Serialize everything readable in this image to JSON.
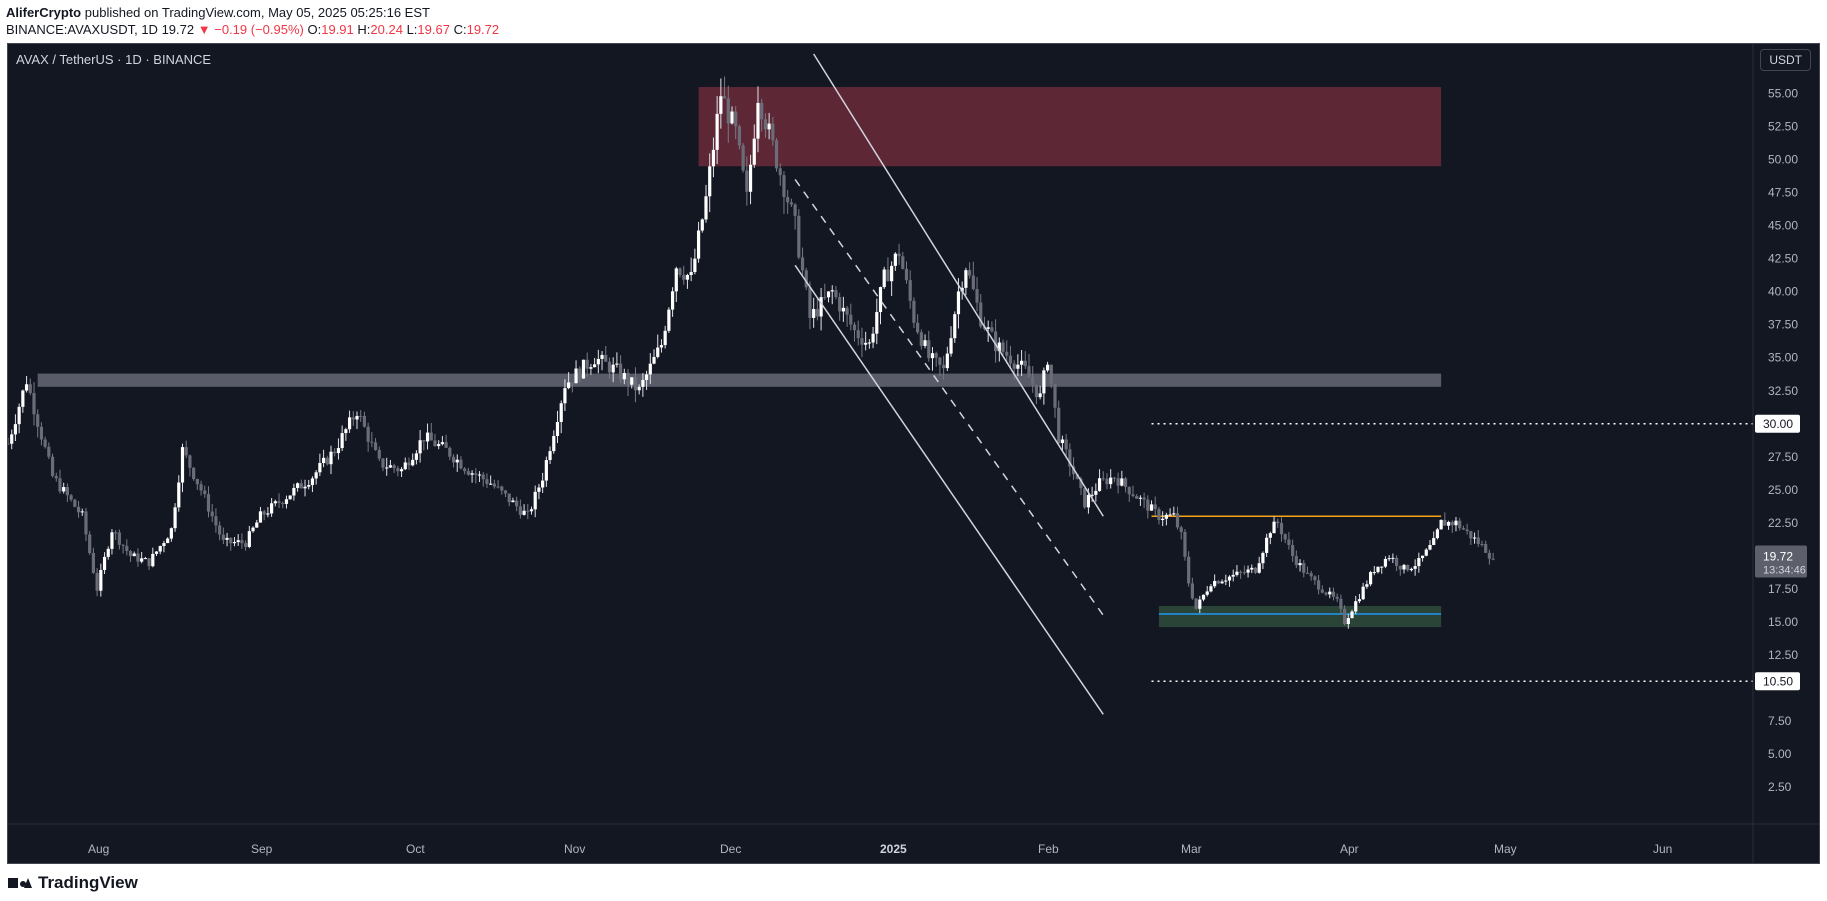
{
  "header": {
    "author": "AliferCrypto",
    "published": "published on TradingView.com, May 05, 2025 05:25:16 EST",
    "symbol": "BINANCE:AVAXUSDT, 1D",
    "last": "19.72",
    "change": "−0.19 (−0.95%)",
    "o_label": "O:",
    "o_value": "19.91",
    "h_label": "H:",
    "h_value": "20.24",
    "l_label": "L:",
    "l_value": "19.67",
    "c_label": "C:",
    "c_value": "19.72"
  },
  "chart": {
    "symbol_label": "AVAX / TetherUS · 1D · BINANCE",
    "currency": "USDT",
    "price_tag": "19.72",
    "countdown": "13:34:46",
    "level_tags": [
      "30.00",
      "10.50"
    ]
  },
  "footer": {
    "brand": "TradingView"
  },
  "colors": {
    "background": "#131722",
    "candle": "#d1d4dc",
    "resistance_zone": "#6b2a3a",
    "support_zone": "#2d4a3a",
    "orange_line": "#f7a21b",
    "blue_line": "#2196f3"
  },
  "chart_data": {
    "type": "candlestick",
    "x_ticks": [
      "Aug",
      "Sep",
      "Oct",
      "Nov",
      "Dec",
      "2025",
      "Feb",
      "Mar",
      "Apr",
      "May",
      "Jun"
    ],
    "y_ticks": [
      "55.00",
      "52.50",
      "50.00",
      "47.50",
      "45.00",
      "42.50",
      "40.00",
      "37.50",
      "35.00",
      "32.50",
      "30.00",
      "27.50",
      "25.00",
      "22.50",
      "17.50",
      "15.00",
      "12.50",
      "10.50",
      "7.50",
      "5.00",
      "2.50"
    ],
    "ylim": [
      0.3,
      58.0
    ],
    "last_price": 19.72,
    "ohlc_path": [
      [
        0,
        28.5
      ],
      [
        5,
        33.3
      ],
      [
        12,
        26
      ],
      [
        20,
        23
      ],
      [
        24,
        17.5
      ],
      [
        28,
        22
      ],
      [
        33,
        20
      ],
      [
        38,
        19.5
      ],
      [
        44,
        22
      ],
      [
        47,
        28
      ],
      [
        52,
        25
      ],
      [
        58,
        21
      ],
      [
        64,
        21
      ],
      [
        68,
        23
      ],
      [
        75,
        24.5
      ],
      [
        82,
        26
      ],
      [
        88,
        28
      ],
      [
        94,
        31
      ],
      [
        100,
        27
      ],
      [
        106,
        26.5
      ],
      [
        112,
        29
      ],
      [
        118,
        28
      ],
      [
        124,
        26.5
      ],
      [
        130,
        25.5
      ],
      [
        136,
        24
      ],
      [
        140,
        23
      ],
      [
        144,
        26
      ],
      [
        150,
        33
      ],
      [
        158,
        35
      ],
      [
        164,
        34
      ],
      [
        170,
        32.5
      ],
      [
        176,
        36
      ],
      [
        180,
        42
      ],
      [
        184,
        41
      ],
      [
        188,
        47
      ],
      [
        192,
        55
      ],
      [
        196,
        52
      ],
      [
        199,
        47
      ],
      [
        202,
        55
      ],
      [
        207,
        50
      ],
      [
        212,
        45
      ],
      [
        216,
        38
      ],
      [
        222,
        40
      ],
      [
        228,
        37
      ],
      [
        232,
        36
      ],
      [
        236,
        41
      ],
      [
        240,
        43
      ],
      [
        244,
        38
      ],
      [
        248,
        35
      ],
      [
        252,
        34
      ],
      [
        256,
        40
      ],
      [
        258,
        42
      ],
      [
        262,
        38
      ],
      [
        266,
        36
      ],
      [
        270,
        35
      ],
      [
        274,
        34
      ],
      [
        278,
        32
      ],
      [
        280,
        35
      ],
      [
        283,
        29
      ],
      [
        286,
        27
      ],
      [
        290,
        24
      ],
      [
        294,
        25.5
      ],
      [
        298,
        26
      ],
      [
        302,
        25
      ],
      [
        306,
        24
      ],
      [
        310,
        23
      ],
      [
        314,
        23
      ],
      [
        316,
        21.5
      ],
      [
        318,
        18
      ],
      [
        320,
        16
      ],
      [
        324,
        18
      ],
      [
        330,
        18.5
      ],
      [
        336,
        19
      ],
      [
        340,
        22
      ],
      [
        342,
        22.5
      ],
      [
        346,
        20
      ],
      [
        350,
        18.5
      ],
      [
        354,
        17.5
      ],
      [
        358,
        16.5
      ],
      [
        360,
        15
      ],
      [
        364,
        17
      ],
      [
        368,
        19
      ],
      [
        372,
        20
      ],
      [
        376,
        19
      ],
      [
        380,
        19.5
      ],
      [
        384,
        21
      ],
      [
        386,
        22.5
      ],
      [
        390,
        22.5
      ],
      [
        394,
        21.5
      ],
      [
        398,
        20.5
      ],
      [
        400,
        19.72
      ]
    ],
    "annotations": {
      "resistance_zone": [
        49.5,
        55.5
      ],
      "gray_resistance_band": [
        32.8,
        33.8
      ],
      "support_zone": [
        14.6,
        16.2
      ],
      "orange_line": 23.0,
      "blue_line": 15.6,
      "dotted_levels": [
        30.0,
        10.5
      ],
      "channel_upper": [
        [
          217,
          58.0
        ],
        [
          295,
          23.0
        ]
      ],
      "channel_lower": [
        [
          212,
          42.0
        ],
        [
          295,
          8.0
        ]
      ],
      "channel_mid": [
        [
          212,
          48.5
        ],
        [
          295,
          15.5
        ]
      ]
    }
  }
}
